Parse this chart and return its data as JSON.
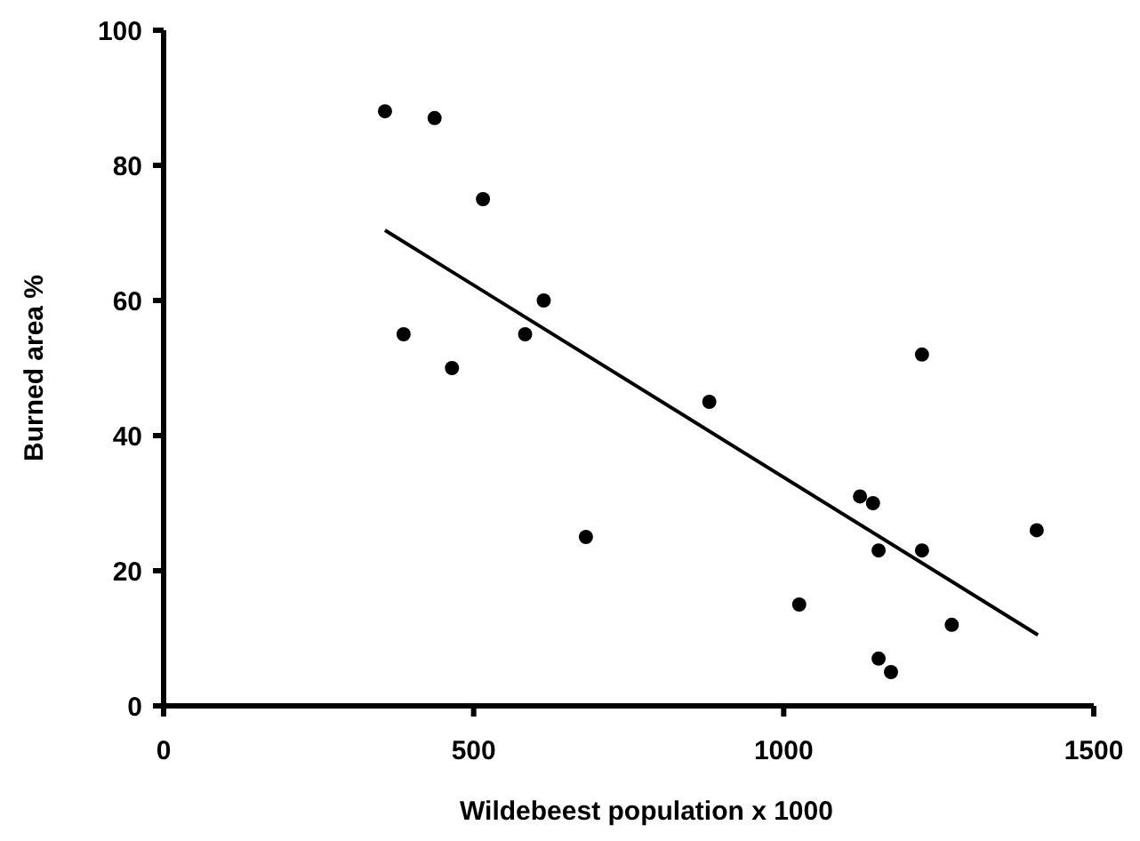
{
  "chart_data": {
    "type": "scatter",
    "xlabel": "Wildebeest population x 1000",
    "ylabel": "Burned area %",
    "xlim": [
      0,
      1500
    ],
    "xticks": [
      0,
      500,
      1000,
      1500
    ],
    "ylim": [
      0,
      100
    ],
    "yticks": [
      0,
      20,
      40,
      60,
      80,
      100
    ],
    "grid": false,
    "series": [
      {
        "color": "#000000",
        "marker": "circle",
        "x": [
          357,
          437,
          515,
          387,
          465,
          583,
          613,
          681,
          880,
          1223,
          1123,
          1144,
          1153,
          1223,
          1408,
          1025,
          1271,
          1153,
          1173
        ],
        "values": [
          88,
          87,
          75,
          55,
          50,
          55,
          60,
          25,
          45,
          52,
          31,
          30,
          23,
          23,
          26,
          15,
          12,
          7,
          5
        ]
      },
      {
        "type": "line",
        "color": "#000000",
        "line_style": "solid",
        "x": [
          357,
          1410
        ],
        "values": [
          70.4,
          10.5
        ]
      }
    ]
  }
}
